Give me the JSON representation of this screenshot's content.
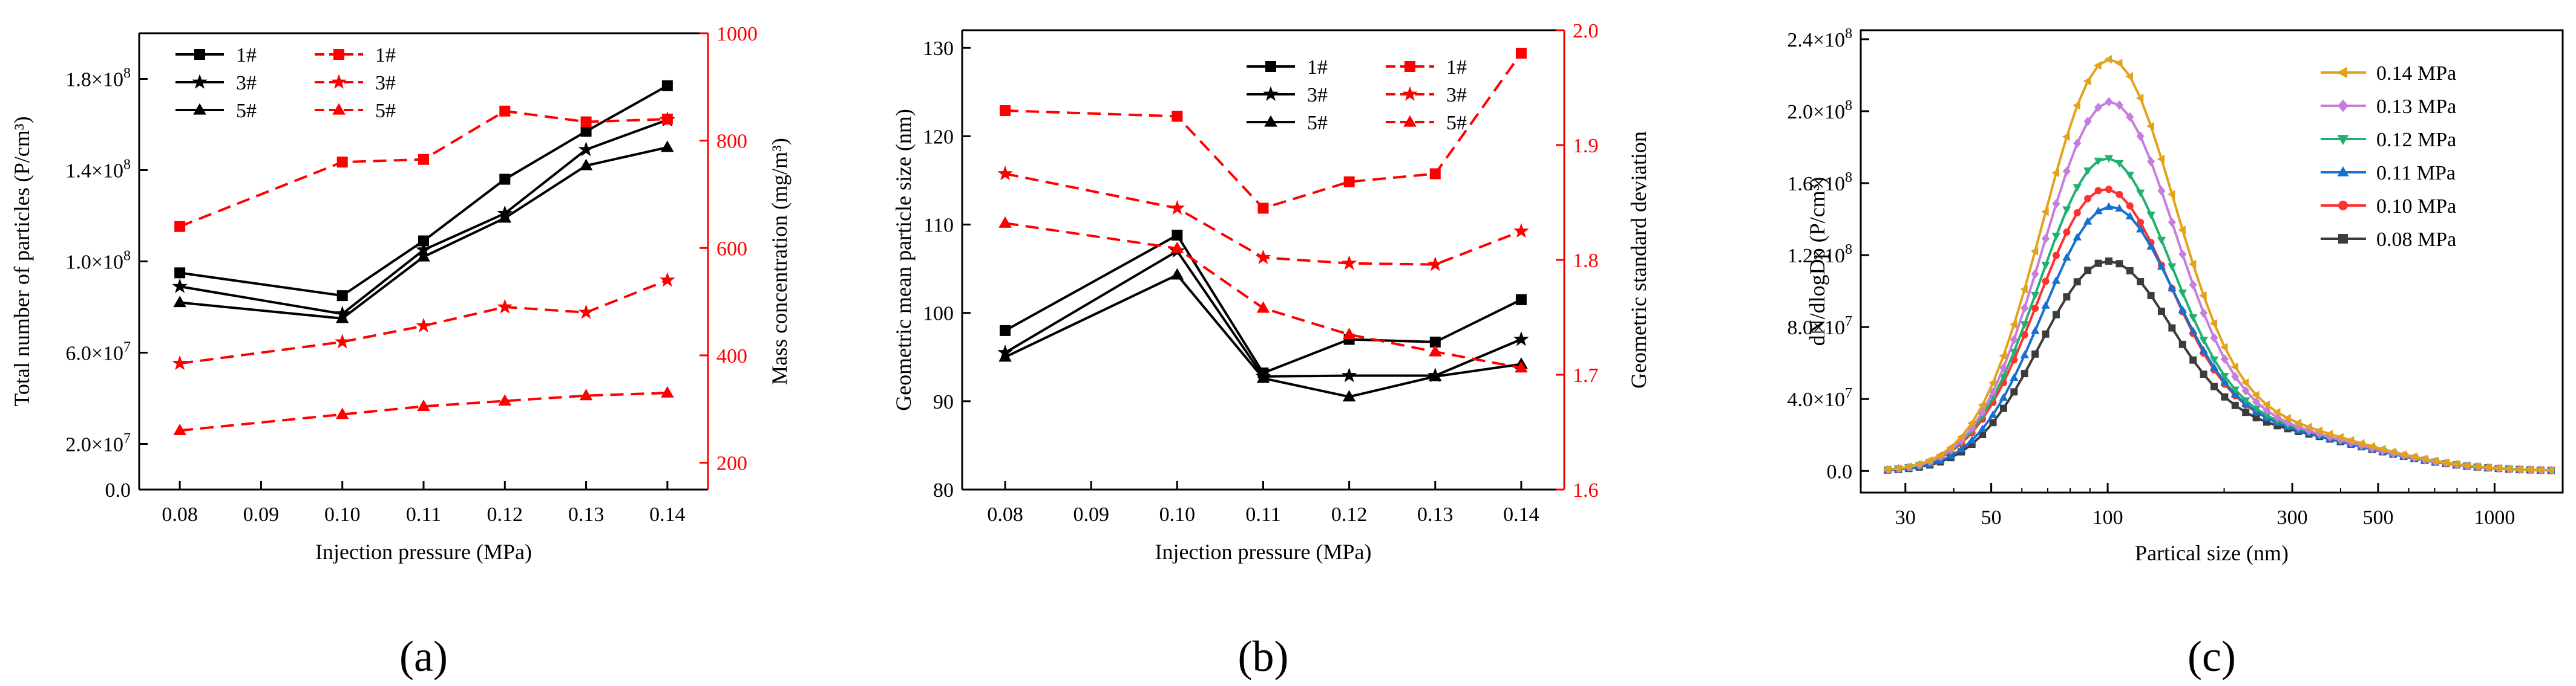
{
  "chart_data": [
    {
      "type": "line",
      "panel_label": "(a)",
      "xlabel": "Injection pressure (MPa)",
      "ylabel_left": "Total number of particles (P/cm³)",
      "ylabel_right": "Mass concentration (mg/m³)",
      "x_ticks": [
        0.08,
        0.09,
        0.1,
        0.11,
        0.12,
        0.13,
        0.14
      ],
      "x_tick_labels": [
        "0.08",
        "0.09",
        "0.10",
        "0.11",
        "0.12",
        "0.13",
        "0.14"
      ],
      "xlim": [
        0.075,
        0.145
      ],
      "y_left_lim": [
        0,
        200000000.0
      ],
      "y_left_ticks": [
        0,
        20000000.0,
        60000000.0,
        100000000.0,
        140000000.0,
        180000000.0
      ],
      "y_left_tick_labels": [
        {
          "base": "0.0",
          "exp": ""
        },
        {
          "base": "2.0×10",
          "exp": "7"
        },
        {
          "base": "6.0×10",
          "exp": "7"
        },
        {
          "base": "1.0×10",
          "exp": "8"
        },
        {
          "base": "1.4×10",
          "exp": "8"
        },
        {
          "base": "1.8×10",
          "exp": "8"
        }
      ],
      "y_right_lim": [
        150,
        1000
      ],
      "y_right_ticks": [
        200,
        400,
        600,
        800,
        1000
      ],
      "y_right_tick_labels": [
        "200",
        "400",
        "600",
        "800",
        "1000"
      ],
      "x": [
        0.08,
        0.1,
        0.11,
        0.12,
        0.13,
        0.14
      ],
      "series": [
        {
          "name": "1#",
          "axis": "left",
          "marker": "square",
          "style": "solid",
          "color": "#000000",
          "values": [
            95000000.0,
            85000000.0,
            109000000.0,
            136000000.0,
            157000000.0,
            177000000.0
          ]
        },
        {
          "name": "3#",
          "axis": "left",
          "marker": "star",
          "style": "solid",
          "color": "#000000",
          "values": [
            89000000.0,
            77000000.0,
            105000000.0,
            121000000.0,
            149000000.0,
            162000000.0
          ]
        },
        {
          "name": "5#",
          "axis": "left",
          "marker": "triangle",
          "style": "solid",
          "color": "#000000",
          "values": [
            82000000.0,
            75000000.0,
            102000000.0,
            119000000.0,
            142000000.0,
            150000000.0
          ]
        },
        {
          "name": "1#",
          "axis": "right",
          "marker": "square",
          "style": "dashed",
          "color": "#ff0000",
          "values": [
            640,
            760,
            765,
            855,
            835,
            840
          ]
        },
        {
          "name": "3#",
          "axis": "right",
          "marker": "star",
          "style": "dashed",
          "color": "#ff0000",
          "values": [
            385,
            425,
            455,
            490,
            480,
            540
          ]
        },
        {
          "name": "5#",
          "axis": "right",
          "marker": "triangle",
          "style": "dashed",
          "color": "#ff0000",
          "values": [
            260,
            290,
            305,
            315,
            325,
            330
          ]
        }
      ]
    },
    {
      "type": "line",
      "panel_label": "(b)",
      "xlabel": "Injection pressure (MPa)",
      "ylabel_left": "Geometric mean particle size (nm)",
      "ylabel_right": "Geometric standard deviation",
      "x_ticks": [
        0.08,
        0.09,
        0.1,
        0.11,
        0.12,
        0.13,
        0.14
      ],
      "x_tick_labels": [
        "0.08",
        "0.09",
        "0.10",
        "0.11",
        "0.12",
        "0.13",
        "0.14"
      ],
      "xlim": [
        0.075,
        0.145
      ],
      "y_left_lim": [
        80,
        132
      ],
      "y_left_ticks": [
        80,
        90,
        100,
        110,
        120,
        130
      ],
      "y_left_tick_labels": [
        "80",
        "90",
        "100",
        "110",
        "120",
        "130"
      ],
      "y_right_lim": [
        1.6,
        2.0
      ],
      "y_right_ticks": [
        1.6,
        1.7,
        1.8,
        1.9,
        2.0
      ],
      "y_right_tick_labels": [
        "1.6",
        "1.7",
        "1.8",
        "1.9",
        "2.0"
      ],
      "x": [
        0.08,
        0.1,
        0.11,
        0.12,
        0.13,
        0.14
      ],
      "series": [
        {
          "name": "1#",
          "axis": "left",
          "marker": "square",
          "style": "solid",
          "color": "#000000",
          "values": [
            98,
            108.8,
            93.2,
            97,
            96.7,
            101.5
          ]
        },
        {
          "name": "3#",
          "axis": "left",
          "marker": "star",
          "style": "solid",
          "color": "#000000",
          "values": [
            95.5,
            107,
            92.8,
            92.9,
            92.9,
            97
          ]
        },
        {
          "name": "5#",
          "axis": "left",
          "marker": "triangle",
          "style": "solid",
          "color": "#000000",
          "values": [
            95,
            104.3,
            92.6,
            90.5,
            92.8,
            94.2
          ]
        },
        {
          "name": "1#",
          "axis": "right",
          "marker": "square",
          "style": "dashed",
          "color": "#ff0000",
          "values": [
            1.93,
            1.925,
            1.845,
            1.868,
            1.875,
            1.98
          ]
        },
        {
          "name": "3#",
          "axis": "right",
          "marker": "star",
          "style": "dashed",
          "color": "#ff0000",
          "values": [
            1.875,
            1.845,
            1.802,
            1.797,
            1.796,
            1.825
          ]
        },
        {
          "name": "5#",
          "axis": "right",
          "marker": "triangle",
          "style": "dashed",
          "color": "#ff0000",
          "values": [
            1.832,
            1.81,
            1.758,
            1.735,
            1.72,
            1.706
          ]
        }
      ]
    },
    {
      "type": "line",
      "panel_label": "(c)",
      "xlabel": "Partical size (nm)",
      "ylabel": "dN/dlogDp (P/cm³)",
      "x_scale": "log",
      "xlim": [
        23,
        1500
      ],
      "x_ticks": [
        30,
        50,
        100,
        300,
        500,
        1000
      ],
      "x_tick_labels": [
        "30",
        "50",
        "100",
        "300",
        "500",
        "1000"
      ],
      "ylim": [
        -12000000.0,
        245000000.0
      ],
      "y_ticks": [
        0,
        40000000.0,
        80000000.0,
        120000000.0,
        160000000.0,
        200000000.0,
        240000000.0
      ],
      "y_tick_labels": [
        {
          "base": "0.0",
          "exp": ""
        },
        {
          "base": "4.0×10",
          "exp": "7"
        },
        {
          "base": "8.0×10",
          "exp": "7"
        },
        {
          "base": "1.2×10",
          "exp": "8"
        },
        {
          "base": "1.6×10",
          "exp": "8"
        },
        {
          "base": "2.0×10",
          "exp": "8"
        },
        {
          "base": "2.4×10",
          "exp": "8"
        }
      ],
      "distribution_model": "log-normal size distribution plus coarse tail: dN/dlogDp = peak·exp(-((log10 Dp − log10 mode)/0.17)²/2) + shoulder·exp(-((log10 Dp − log10 250)/0.26)²/2)",
      "series": [
        {
          "name": "0.14 MPa",
          "color": "#e3a21a",
          "marker": "left-triangle",
          "mode_nm": 100,
          "peak": 221000000.0,
          "shoulder": 25000000.0
        },
        {
          "name": "0.13 MPa",
          "color": "#c77ddb",
          "marker": "diamond",
          "mode_nm": 100,
          "peak": 198000000.0,
          "shoulder": 23000000.0
        },
        {
          "name": "0.12 MPa",
          "color": "#20b070",
          "marker": "down-triangle",
          "mode_nm": 98,
          "peak": 167000000.0,
          "shoulder": 23000000.0
        },
        {
          "name": "0.11 MPa",
          "color": "#1570d0",
          "marker": "up-triangle",
          "mode_nm": 100,
          "peak": 140000000.0,
          "shoulder": 22000000.0
        },
        {
          "name": "0.10 MPa",
          "color": "#ff3030",
          "marker": "circle",
          "mode_nm": 97,
          "peak": 150000000.0,
          "shoulder": 23000000.0
        },
        {
          "name": "0.08 MPa",
          "color": "#3c3c3c",
          "marker": "square",
          "mode_nm": 98,
          "peak": 110000000.0,
          "shoulder": 22000000.0
        }
      ]
    }
  ]
}
